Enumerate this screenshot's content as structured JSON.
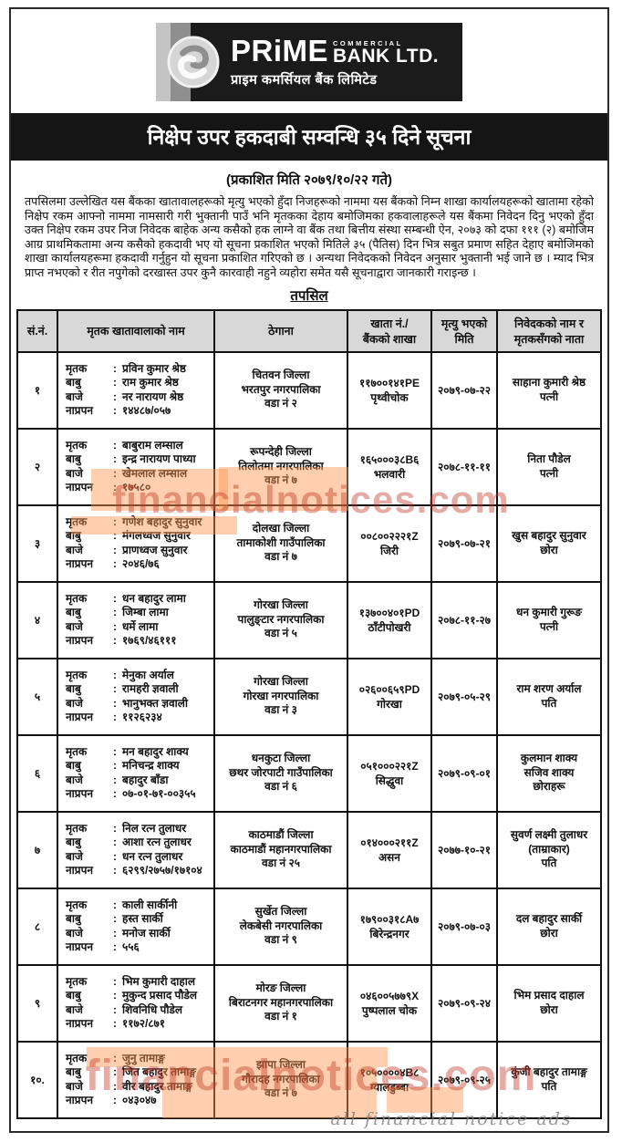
{
  "logo": {
    "brand": "PRiME",
    "commercial": "COMMERCIAL",
    "bank": "BANK LTD.",
    "nepali_name": "प्राइम कमर्सियल बैंक लिमिटेड"
  },
  "notice": {
    "title": "निक्षेप उपर हकदाबी सम्वन्धि ३५ दिने सूचना",
    "published": "(प्रकाशित मिति २०७९/१०/२२ गते)",
    "body": "तपसिलमा उल्लेखित यस बैंकका खातावालहरूको मृत्यु भएको हुँदा निजहरूको नाममा यस बैंकको निम्न शाखा कार्यालयहरूको खातामा रहेको निक्षेप रकम आफ्नो नाममा नामसारी गरी भुक्तानी पाउँ भनि मृतकका देहाय बमोजिमका हकवालाहरूले यस बैंकमा निवेदन दिनु भएको हुँदा उक्त निक्षेप रकम उपर निज निवेदक बाहेक अन्य कसैको हक लाग्ने वा बैंक तथा बित्तीय संस्था सम्बन्धी ऐन, २०७३ को दफा १११ (२) बमोजिम आग्र प्राथमिकतामा अन्य कसैको हकदावी भए यो सूचना प्रकाशित भएको मितिले ३५ (पैतिस) दिन भित्र सबुत प्रमाण सहित देहाए बमोजिमको शाखा कार्यालयहरूमा हकदावी गर्नुहुन यो सूचना प्रकाशित गरिएको छ । अन्यथा निवेदकको निवेदन अनुसार भुक्तानी भई जाने छ । म्याद भित्र प्राप्त नभएको र रीत नपुगेको दरखास्त उपर कुनै कारवाही नहुने व्यहोरा समेत यसै सूचनाद्वारा जानकारी गराइन्छ ।",
    "section_title": "तपसिल"
  },
  "table": {
    "colon": ":",
    "columns": [
      {
        "lines": [
          "सं.नं."
        ]
      },
      {
        "lines": [
          "मृतक खातावालाको नाम"
        ]
      },
      {
        "lines": [
          "ठेगाना"
        ]
      },
      {
        "lines": [
          "खाता नं./",
          "बैंकको शाखा"
        ]
      },
      {
        "lines": [
          "मृत्यु भएको",
          "मिति"
        ]
      },
      {
        "lines": [
          "निवेदकको नाम र",
          "मृतकसँगको नाता"
        ]
      }
    ],
    "rows": [
      {
        "sn": "१",
        "deceased": [
          {
            "label": "मृतक",
            "value": "प्रविन कुमार श्रेष्ठ"
          },
          {
            "label": "बाबु",
            "value": "राम कुमार श्रेष्ठ"
          },
          {
            "label": "बाजे",
            "value": "नर नारायण श्रेष्ठ"
          },
          {
            "label": "नाप्रपन",
            "value": "१४४८७/०५७"
          }
        ],
        "address": [
          "चितवन जिल्ला",
          "भरतपुर नगरपालिका",
          "वडा नं २"
        ],
        "account": {
          "number": "११७००१४१PE",
          "branch": "पृथ्वीचोक"
        },
        "death_date": "२०७९-०७-२२",
        "claimant": [
          "साहाना कुमारी श्रेष्ठ",
          "पत्नी"
        ]
      },
      {
        "sn": "२",
        "deceased": [
          {
            "label": "मृतक",
            "value": "बाबुराम लम्साल"
          },
          {
            "label": "बाबु",
            "value": "इन्द्र नारायण पाध्या"
          },
          {
            "label": "बाजे",
            "value": "खेमलाल लम्साल"
          },
          {
            "label": "नाप्रपन",
            "value": "१७५८०"
          }
        ],
        "address": [
          "रूपन्देही जिल्ला",
          "तिलोतमा नगरपालिका",
          "वडा नं ७"
        ],
        "account": {
          "number": "१६५०००३८B६",
          "branch": "भलवारी"
        },
        "death_date": "२०७८-११-११",
        "claimant": [
          "निता पौडेल",
          "पत्नी"
        ]
      },
      {
        "sn": "३",
        "deceased": [
          {
            "label": "मृतक",
            "value": "गणेश बहादुर सुनुवार"
          },
          {
            "label": "बाबु",
            "value": "मंगलध्वज सुनुवार"
          },
          {
            "label": "बाजे",
            "value": "प्राणध्वज सुनुवार"
          },
          {
            "label": "नाप्रपन",
            "value": "२०४६/७६"
          }
        ],
        "address": [
          "दोलखा जिल्ला",
          "तामाकोशी गाउँपालिका",
          "वडा नं ७"
        ],
        "account": {
          "number": "००८००२२२१Z",
          "branch": "जिरी"
        },
        "death_date": "२०७९-०७-२१",
        "claimant": [
          "खुस बहादुर सुनुवार",
          "छोरा"
        ]
      },
      {
        "sn": "४",
        "deceased": [
          {
            "label": "मृतक",
            "value": "धन बहादुर लामा"
          },
          {
            "label": "बाबु",
            "value": "जिम्बा लामा"
          },
          {
            "label": "बाजे",
            "value": "धर्मे लामा"
          },
          {
            "label": "नाप्रपन",
            "value": "१७६९/४६१११"
          }
        ],
        "address": [
          "गोरखा जिल्ला",
          "पालुङ्टार नगरपालिका",
          "वडा नं ५"
        ],
        "account": {
          "number": "१३७००४०१PD",
          "branch": "ठाँटीपोखरी"
        },
        "death_date": "२०७८-११-२७",
        "claimant": [
          "धन कुमारी गुरूङ",
          "पत्नी"
        ]
      },
      {
        "sn": "५",
        "deceased": [
          {
            "label": "मृतक",
            "value": "मेनुका अर्याल"
          },
          {
            "label": "बाबु",
            "value": "रामहरी ज्ञवाली"
          },
          {
            "label": "बाजे",
            "value": "भानुभक्त ज्ञवाली"
          },
          {
            "label": "नाप्रपन",
            "value": "११२६२३४"
          }
        ],
        "address": [
          "गोरखा जिल्ला",
          "गोरखा नगरपालिका",
          "वडा नं ३"
        ],
        "account": {
          "number": "०२६००६५९PD",
          "branch": "गोरखा"
        },
        "death_date": "२०७९-०५-२९",
        "claimant": [
          "राम शरण अर्याल",
          "पति"
        ]
      },
      {
        "sn": "६",
        "deceased": [
          {
            "label": "मृतक",
            "value": "मन बहादुर शाक्य"
          },
          {
            "label": "बाबु",
            "value": "मनिचन्द्र शाक्य"
          },
          {
            "label": "बाजे",
            "value": "बहादुर बाँडा"
          },
          {
            "label": "नाप्रपन",
            "value": "०७-०१-७१-००३५५"
          }
        ],
        "address": [
          "धनकुटा जिल्ला",
          "छथर जोरपाटी गाउँपालिका",
          "वडा नं ६"
        ],
        "account": {
          "number": "०५१०००२२१Z",
          "branch": "सिद्धुवा"
        },
        "death_date": "२०७९-०९-०१",
        "claimant": [
          "कुलमान शाक्य",
          "सजिव शाक्य",
          "छोराहरू"
        ]
      },
      {
        "sn": "७",
        "deceased": [
          {
            "label": "मृतक",
            "value": "निल रत्न तुलाधर"
          },
          {
            "label": "बाबु",
            "value": "आशा रत्न तुलाधर"
          },
          {
            "label": "बाजे",
            "value": "धन रत्न तुलाधर"
          },
          {
            "label": "नाप्रपन",
            "value": "६२९९/२७५७/१७१०४"
          }
        ],
        "address": [
          "काठमाडौं जिल्ला",
          "काठमाडौं महानगरपालिका",
          "वडा नं २५"
        ],
        "account": {
          "number": "०१४०००२११Z",
          "branch": "असन"
        },
        "death_date": "२०७७-१०-२१",
        "claimant": [
          "सुवर्ण लक्ष्मी तुलाधर",
          "(ताम्राकार)",
          "पति"
        ]
      },
      {
        "sn": "८",
        "deceased": [
          {
            "label": "मृतक",
            "value": "काली सार्कीनी"
          },
          {
            "label": "बाबु",
            "value": "हस्त सार्की"
          },
          {
            "label": "बाजे",
            "value": "मनोज सार्की"
          },
          {
            "label": "नाप्रपन",
            "value": "५५६"
          }
        ],
        "address": [
          "सुर्खेत जिल्ला",
          "लेकबेसी नगरपालिका",
          "वडा नं ९"
        ],
        "account": {
          "number": "१७९००३१८A७",
          "branch": "बिरेन्द्रनगर"
        },
        "death_date": "२०७९-०७-०३",
        "claimant": [
          "दल बहादुर सार्की",
          "छोरा"
        ]
      },
      {
        "sn": "९",
        "deceased": [
          {
            "label": "मृतक",
            "value": "भिम कुमारी दाहाल"
          },
          {
            "label": "बाबु",
            "value": "मुकुन्द प्रसाद पौडेल"
          },
          {
            "label": "बाजे",
            "value": "शिवनिधि पौडेल"
          },
          {
            "label": "नाप्रपन",
            "value": "११७२/८७१"
          }
        ],
        "address": [
          "मोरङ जिल्ला",
          "बिराटनगर महानगरपालिका",
          "वडा नं १"
        ],
        "account": {
          "number": "०४६००५७७९X",
          "branch": "पुष्पलाल चोक"
        },
        "death_date": "२०७९-०९-२४",
        "claimant": [
          "भिम प्रसाद दाहाल",
          "छोरा"
        ]
      },
      {
        "sn": "१०.",
        "deceased": [
          {
            "label": "मृतक",
            "value": "जुनु तामाङ्ग"
          },
          {
            "label": "बाबु",
            "value": "जित बहादुर तामाङ्ग"
          },
          {
            "label": "बाजे",
            "value": "वीर बहादुर तामाङ्ग"
          },
          {
            "label": "नाप्रपन",
            "value": "०४३०४७"
          }
        ],
        "address": [
          "झापा जिल्ला",
          "गौरादह नगरपालिका",
          "वडा नं ७"
        ],
        "account": {
          "number": "१०५००००४B८",
          "branch": "ग्यालडुब्बा"
        },
        "death_date": "२०७९-०९-२५",
        "claimant": [
          "कुंजी बहादुर तामाङ्ग",
          "पति"
        ]
      }
    ]
  },
  "watermarks": {
    "site": "financialnotices.com",
    "script": "all financial notice ads"
  },
  "colors": {
    "banner_bg": "#151515",
    "table_header_bg": "#d8d8d8",
    "watermark_red": "#be3a26",
    "highlight_orange": "#ff944e"
  }
}
